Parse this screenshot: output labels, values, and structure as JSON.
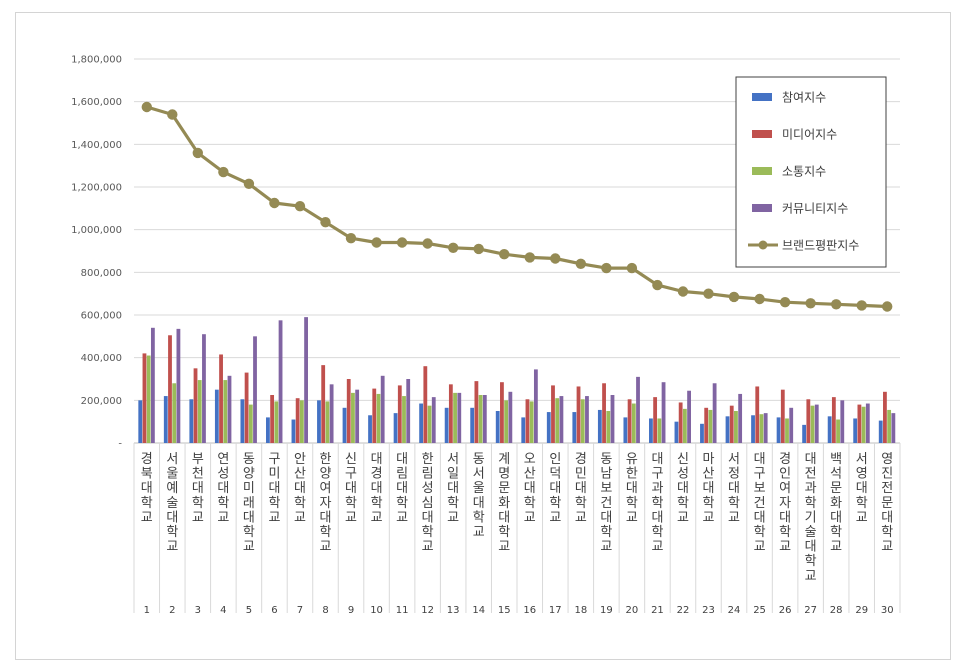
{
  "chart_data": {
    "type": "bar",
    "title": "",
    "xlabel": "",
    "ylabel": "",
    "ylim": [
      0,
      1800000
    ],
    "yticks": [
      "-",
      "200,000",
      "400,000",
      "600,000",
      "800,000",
      "1,000,000",
      "1,200,000",
      "1,400,000",
      "1,600,000",
      "1,800,000"
    ],
    "grid": true,
    "legend_position": "top-right",
    "ranks": [
      "1",
      "2",
      "3",
      "4",
      "5",
      "6",
      "7",
      "8",
      "9",
      "10",
      "11",
      "12",
      "13",
      "14",
      "15",
      "16",
      "17",
      "18",
      "19",
      "20",
      "21",
      "22",
      "23",
      "24",
      "25",
      "26",
      "27",
      "28",
      "29",
      "30"
    ],
    "categories": [
      "경북대학교",
      "서울예술대학교",
      "부천대학교",
      "연성대학교",
      "동양미래대학교",
      "구미대학교",
      "안산대학교",
      "한양여자대학교",
      "신구대학교",
      "대경대학교",
      "대림대학교",
      "한림성심대학교",
      "서일대학교",
      "동서울대학교",
      "계명문화대학교",
      "오산대학교",
      "인덕대학교",
      "경민대학교",
      "동남보건대학교",
      "유한대학교",
      "대구과학대학교",
      "신성대학교",
      "마산대학교",
      "서정대학교",
      "대구보건대학교",
      "경인여자대학교",
      "대전과학기술대학교",
      "백석문화대학교",
      "서영대학교",
      "영진전문대학교"
    ],
    "series": [
      {
        "name": "참여지수",
        "color": "#4472c4",
        "kind": "bar",
        "values": [
          200000,
          220000,
          205000,
          250000,
          205000,
          120000,
          110000,
          200000,
          165000,
          130000,
          140000,
          185000,
          165000,
          165000,
          150000,
          120000,
          145000,
          145000,
          155000,
          120000,
          115000,
          100000,
          90000,
          125000,
          130000,
          120000,
          85000,
          125000,
          115000,
          105000
        ]
      },
      {
        "name": "미디어지수",
        "color": "#c0504d",
        "kind": "bar",
        "values": [
          420000,
          505000,
          350000,
          415000,
          330000,
          225000,
          210000,
          365000,
          300000,
          255000,
          270000,
          360000,
          275000,
          290000,
          285000,
          205000,
          270000,
          265000,
          280000,
          205000,
          215000,
          190000,
          165000,
          175000,
          265000,
          250000,
          205000,
          215000,
          180000,
          240000
        ]
      },
      {
        "name": "소통지수",
        "color": "#9bbb59",
        "kind": "bar",
        "values": [
          410000,
          280000,
          295000,
          295000,
          180000,
          195000,
          200000,
          195000,
          235000,
          230000,
          220000,
          175000,
          235000,
          225000,
          200000,
          195000,
          210000,
          205000,
          150000,
          185000,
          115000,
          160000,
          155000,
          150000,
          135000,
          115000,
          175000,
          110000,
          170000,
          155000
        ]
      },
      {
        "name": "커뮤니티지수",
        "color": "#8064a2",
        "kind": "bar",
        "values": [
          540000,
          535000,
          510000,
          315000,
          500000,
          575000,
          590000,
          275000,
          250000,
          315000,
          300000,
          215000,
          235000,
          225000,
          240000,
          345000,
          220000,
          220000,
          225000,
          310000,
          285000,
          245000,
          280000,
          230000,
          140000,
          165000,
          180000,
          200000,
          185000,
          140000
        ]
      },
      {
        "name": "브랜드평판지수",
        "color": "#948a54",
        "kind": "line",
        "values": [
          1575000,
          1540000,
          1360000,
          1270000,
          1215000,
          1125000,
          1110000,
          1035000,
          960000,
          940000,
          940000,
          935000,
          915000,
          910000,
          885000,
          870000,
          865000,
          840000,
          820000,
          820000,
          740000,
          710000,
          700000,
          685000,
          675000,
          660000,
          655000,
          650000,
          645000,
          640000
        ]
      }
    ]
  }
}
